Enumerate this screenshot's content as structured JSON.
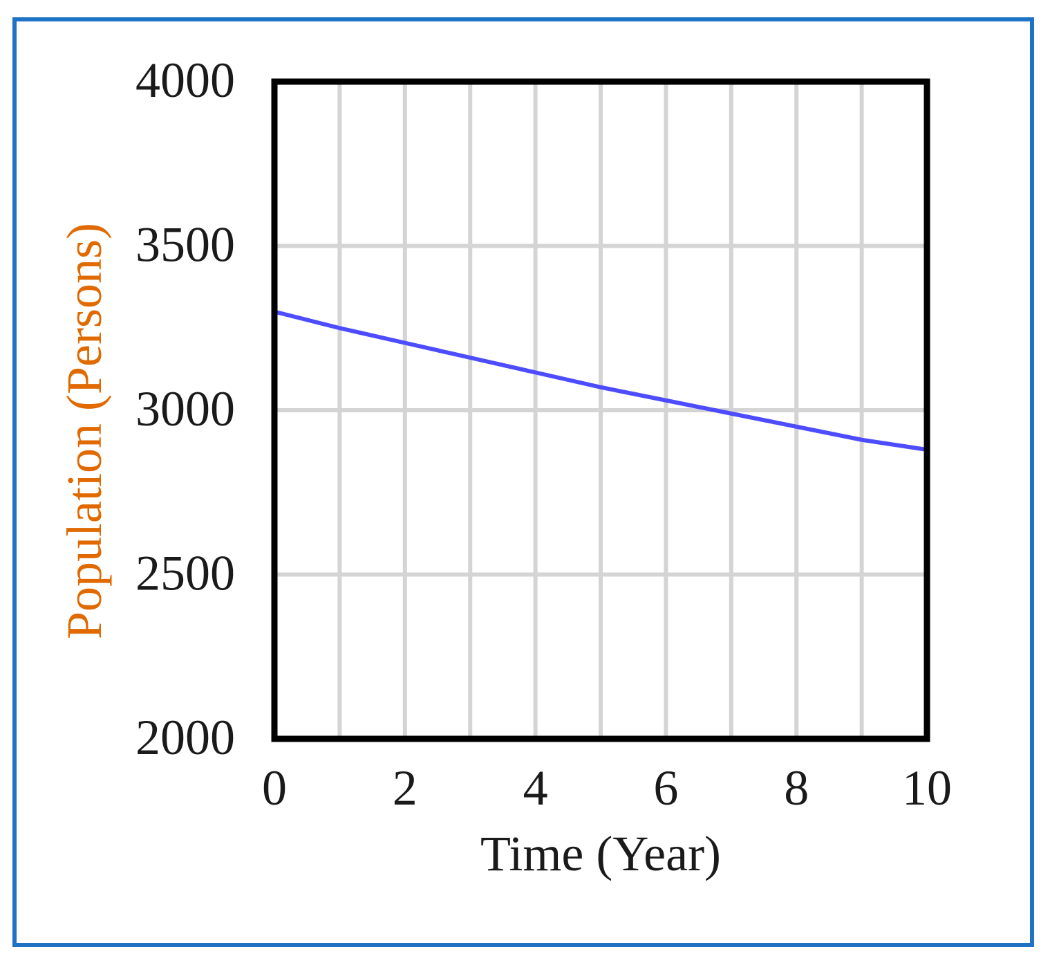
{
  "frame": {
    "border_color": "#1f73c6"
  },
  "chart_data": {
    "type": "line",
    "xlabel": "Time (Year)",
    "ylabel": "Population (Persons)",
    "xlim": [
      0,
      10
    ],
    "ylim": [
      2000,
      4000
    ],
    "x_ticks": [
      0,
      2,
      4,
      6,
      8,
      10
    ],
    "y_ticks": [
      2000,
      2500,
      3000,
      3500,
      4000
    ],
    "x_tick_labels": [
      "0",
      "2",
      "4",
      "6",
      "8",
      "10"
    ],
    "y_tick_labels": [
      "2000",
      "2500",
      "3000",
      "3500",
      "4000"
    ],
    "x_grid_step": 1,
    "y_grid_step": 500,
    "grid": true,
    "xlabel_color": "#1a1a1a",
    "ylabel_color": "#e06a00",
    "series": [
      {
        "color": "#4d4dff",
        "x": [
          0,
          1,
          2,
          3,
          4,
          5,
          6,
          7,
          8,
          9,
          10
        ],
        "y": [
          3300,
          3250,
          3205,
          3160,
          3115,
          3070,
          3030,
          2990,
          2950,
          2910,
          2880
        ]
      }
    ]
  }
}
